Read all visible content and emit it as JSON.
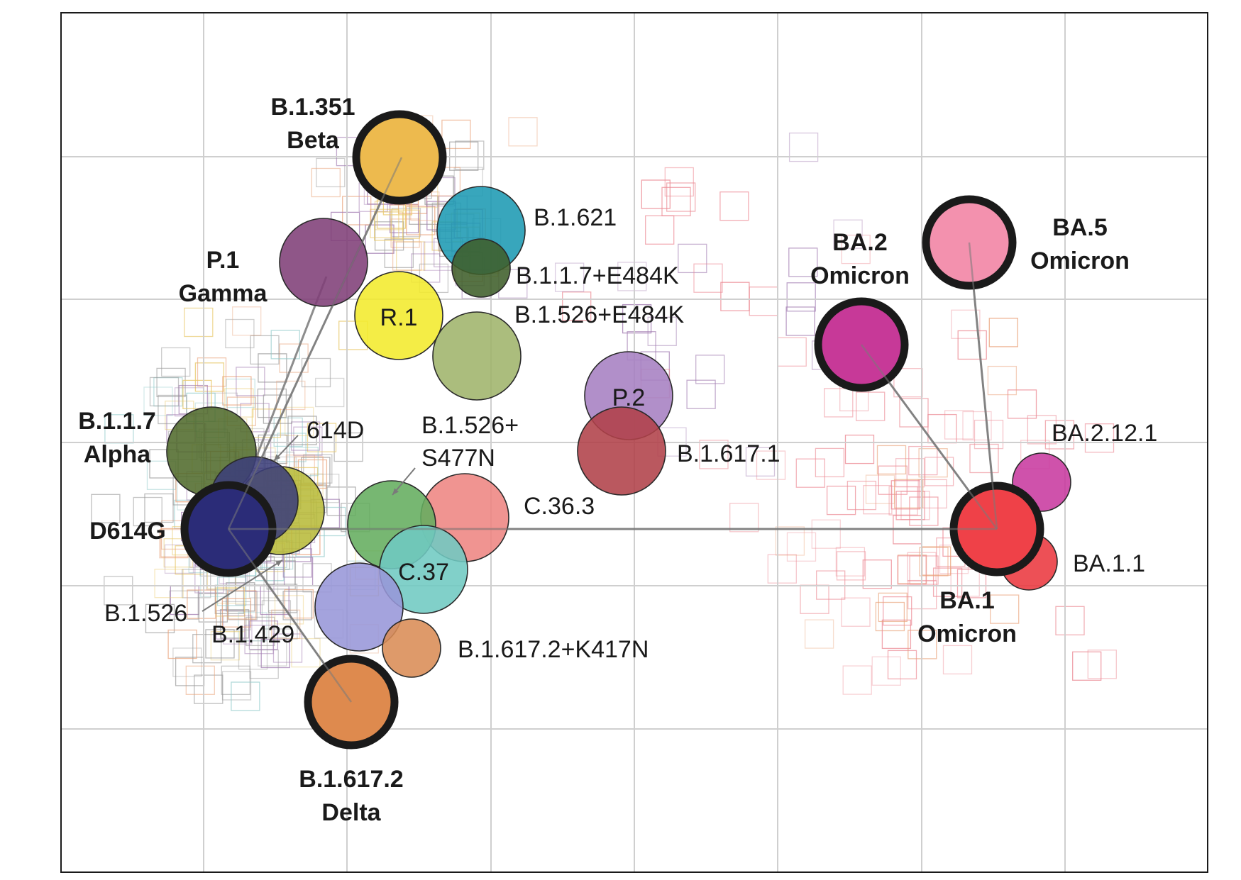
{
  "antigens": [
    {
      "id": "beta",
      "name": "B.1.351",
      "name2": "Beta",
      "color": "#edba4e",
      "bold": true
    },
    {
      "id": "b1621",
      "name": "B.1.621",
      "color": "#1d9ab3"
    },
    {
      "id": "b117e484k",
      "name": "B.1.1.7+E484K",
      "color": "#3f5f2a"
    },
    {
      "id": "gamma",
      "name": "P.1",
      "name2": "Gamma",
      "color": "#7f3f78",
      "bold": true
    },
    {
      "id": "r1",
      "name": "R.1",
      "color": "#f3ea2c"
    },
    {
      "id": "b1526e484k",
      "name": "B.1.526+E484K",
      "color": "#9fb46b"
    },
    {
      "id": "p2",
      "name": "P.2",
      "color": "#a680c2"
    },
    {
      "id": "b16171",
      "name": "B.1.617.1",
      "color": "#b04149"
    },
    {
      "id": "alpha",
      "name": "B.1.1.7",
      "name2": "Alpha",
      "color": "#516b2c",
      "bold": true
    },
    {
      "id": "b1526",
      "name": "B.1.526",
      "color": "#b8bb3a"
    },
    {
      "id": "d614",
      "name": "614D",
      "color": "#3c3f7a"
    },
    {
      "id": "d614g",
      "name": "D614G",
      "color": "#2b2c78",
      "bold": true
    },
    {
      "id": "b1526s477n",
      "name": "B.1.526+",
      "name2": "S477N",
      "color": "#64ad5e"
    },
    {
      "id": "c363",
      "name": "C.36.3",
      "color": "#ee8582"
    },
    {
      "id": "c37",
      "name": "C.37",
      "color": "#6fcac2"
    },
    {
      "id": "b1429",
      "name": "B.1.429",
      "color": "#9796d8"
    },
    {
      "id": "b16172k417n",
      "name": "B.1.617.2+K417N",
      "color": "#d98c55"
    },
    {
      "id": "delta",
      "name": "B.1.617.2",
      "name2": "Delta",
      "color": "#de8a4e",
      "bold": true
    },
    {
      "id": "ba2",
      "name": "BA.2",
      "name2": "Omicron",
      "color": "#c73998",
      "bold": true
    },
    {
      "id": "ba5",
      "name": "BA.5",
      "name2": "Omicron",
      "color": "#f391ae",
      "bold": true
    },
    {
      "id": "ba2121",
      "name": "BA.2.12.1",
      "color": "#c83a9f"
    },
    {
      "id": "ba1",
      "name": "BA.1",
      "name2": "Omicron",
      "color": "#ef4148",
      "bold": true
    },
    {
      "id": "ba11",
      "name": "BA.1.1",
      "color": "#ea383f"
    }
  ],
  "colors": {
    "frame": "#1a1a1a",
    "grid": "#cfcfcf",
    "connector": "#7a7a7a",
    "serum_grey": "#9a9a9a",
    "serum_yellow": "#e8c86a",
    "serum_purple": "#a07ab0",
    "serum_red": "#ec8a94",
    "serum_teal": "#8fc9c9",
    "serum_orange": "#e9a27a"
  }
}
